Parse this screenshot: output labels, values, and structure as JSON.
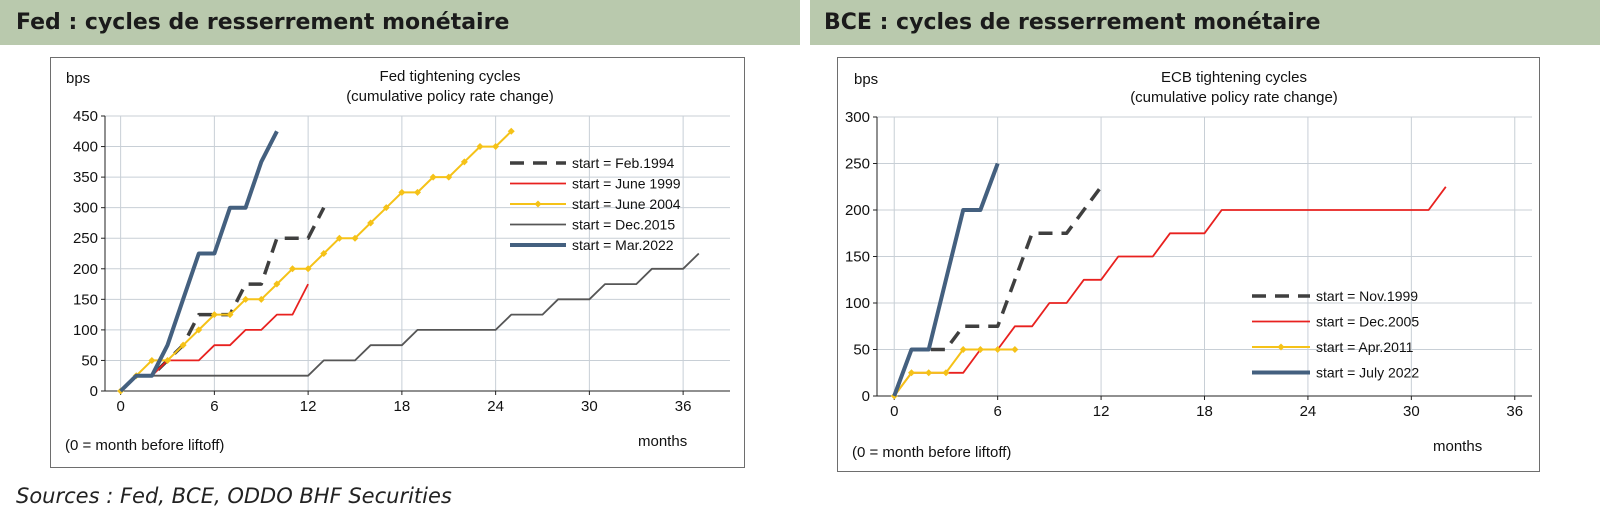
{
  "left_panel": {
    "title": "Fed : cycles de resserrement monétaire"
  },
  "right_panel": {
    "title": "BCE : cycles de resserrement monétaire"
  },
  "sources": "Sources : Fed, BCE, ODDO BHF Securities",
  "chart_data": [
    {
      "type": "line",
      "title": "Fed tightening cycles",
      "subtitle": "(cumulative policy rate change)",
      "ylabel": "bps",
      "xlabel": "months",
      "note": "(0 = month before liftoff)",
      "xlim": [
        -1,
        39
      ],
      "ylim": [
        0,
        450
      ],
      "xticks": [
        0,
        6,
        12,
        18,
        24,
        30,
        36
      ],
      "yticks": [
        0,
        50,
        100,
        150,
        200,
        250,
        300,
        350,
        400,
        450
      ],
      "grid": true,
      "legend_position": "right",
      "series": [
        {
          "name": "start = Feb.1994",
          "color": "#3f3f3f",
          "style": "dashed",
          "x": [
            0,
            1,
            2,
            3,
            4,
            5,
            6,
            7,
            8,
            9,
            10,
            11,
            12,
            13
          ],
          "y": [
            0,
            25,
            25,
            50,
            75,
            125,
            125,
            125,
            175,
            175,
            250,
            250,
            250,
            300
          ]
        },
        {
          "name": "start = June 1999",
          "color": "#e8211f",
          "style": "solid",
          "x": [
            0,
            1,
            2,
            3,
            4,
            5,
            6,
            7,
            8,
            9,
            10,
            11,
            12
          ],
          "y": [
            0,
            25,
            25,
            50,
            50,
            50,
            75,
            75,
            100,
            100,
            125,
            125,
            175
          ]
        },
        {
          "name": "start = June 2004",
          "color": "#f5c218",
          "style": "marker",
          "x": [
            0,
            1,
            2,
            3,
            4,
            5,
            6,
            7,
            8,
            9,
            10,
            11,
            12,
            13,
            14,
            15,
            16,
            17,
            18,
            19,
            20,
            21,
            22,
            23,
            24,
            25
          ],
          "y": [
            0,
            25,
            50,
            50,
            75,
            100,
            125,
            125,
            150,
            150,
            175,
            200,
            200,
            225,
            250,
            250,
            275,
            300,
            325,
            325,
            350,
            350,
            375,
            400,
            400,
            425
          ]
        },
        {
          "name": "start = Dec.2015",
          "color": "#565656",
          "style": "solid",
          "x": [
            0,
            1,
            2,
            12,
            13,
            14,
            15,
            16,
            17,
            18,
            19,
            20,
            21,
            22,
            23,
            24,
            25,
            26,
            27,
            28,
            29,
            30,
            31,
            32,
            33,
            34,
            35,
            36,
            37
          ],
          "y": [
            0,
            25,
            25,
            25,
            50,
            50,
            50,
            75,
            75,
            75,
            100,
            100,
            100,
            100,
            100,
            100,
            125,
            125,
            125,
            150,
            150,
            150,
            175,
            175,
            175,
            200,
            200,
            200,
            225
          ]
        },
        {
          "name": "start =  Mar.2022",
          "color": "#44607f",
          "style": "thick",
          "x": [
            0,
            1,
            2,
            3,
            4,
            5,
            6,
            7,
            8,
            9,
            10
          ],
          "y": [
            0,
            25,
            25,
            75,
            150,
            225,
            225,
            300,
            300,
            375,
            425
          ]
        }
      ]
    },
    {
      "type": "line",
      "title": "ECB tightening cycles",
      "subtitle": "(cumulative policy rate change)",
      "ylabel": "bps",
      "xlabel": "months",
      "note": "(0 = month before liftoff)",
      "xlim": [
        -1,
        37
      ],
      "ylim": [
        0,
        300
      ],
      "xticks": [
        0,
        6,
        12,
        18,
        24,
        30,
        36
      ],
      "yticks": [
        0,
        50,
        100,
        150,
        200,
        250,
        300
      ],
      "grid": true,
      "legend_position": "bottom-right",
      "series": [
        {
          "name": "start = Nov.1999",
          "color": "#3f3f3f",
          "style": "dashed",
          "x": [
            0,
            1,
            2,
            3,
            4,
            5,
            6,
            7,
            8,
            9,
            10,
            11,
            12
          ],
          "y": [
            0,
            50,
            50,
            50,
            75,
            75,
            75,
            125,
            175,
            175,
            175,
            200,
            225
          ]
        },
        {
          "name": "start = Dec.2005",
          "color": "#e8211f",
          "style": "solid",
          "x": [
            0,
            1,
            2,
            3,
            4,
            5,
            6,
            7,
            8,
            9,
            10,
            11,
            12,
            13,
            14,
            15,
            16,
            17,
            18,
            19,
            31,
            32
          ],
          "y": [
            0,
            25,
            25,
            25,
            25,
            50,
            50,
            75,
            75,
            100,
            100,
            125,
            125,
            150,
            150,
            150,
            175,
            175,
            175,
            200,
            200,
            225
          ]
        },
        {
          "name": "start = Apr.2011",
          "color": "#f5c218",
          "style": "marker",
          "x": [
            0,
            1,
            2,
            3,
            4,
            5,
            6,
            7
          ],
          "y": [
            0,
            25,
            25,
            25,
            50,
            50,
            50,
            50
          ]
        },
        {
          "name": "start =  July 2022",
          "color": "#44607f",
          "style": "thick",
          "x": [
            0,
            1,
            2,
            3,
            4,
            5,
            6
          ],
          "y": [
            0,
            50,
            50,
            125,
            200,
            200,
            250
          ]
        }
      ]
    }
  ]
}
